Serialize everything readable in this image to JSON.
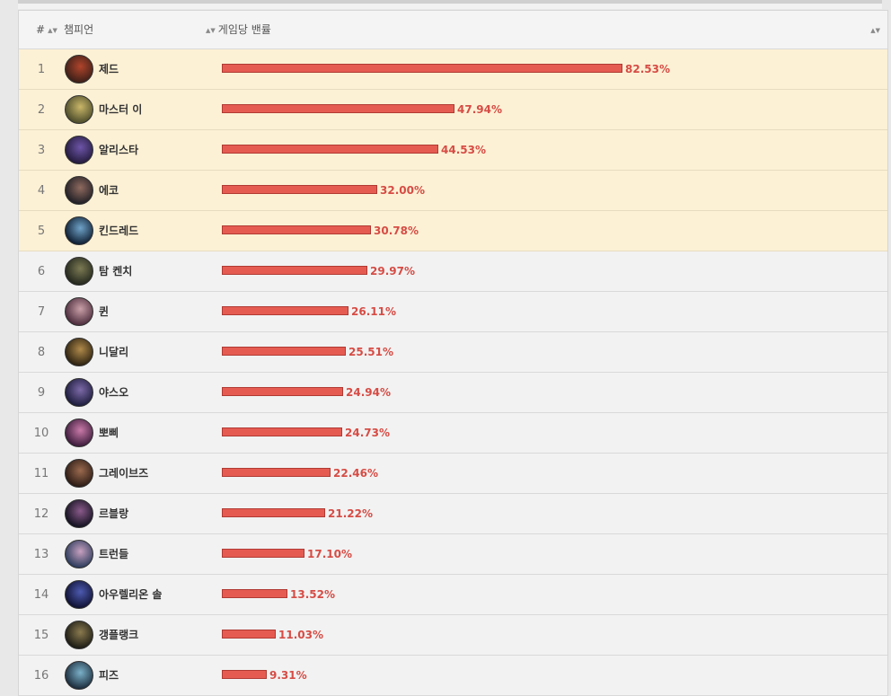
{
  "table": {
    "headers": {
      "rank": "#",
      "champion": "챔피언",
      "stat": "게임당 밴률"
    },
    "rows": [
      {
        "rank": "1",
        "name": "제드",
        "value": "82.53%",
        "pct": 82.53,
        "colors": [
          "#3a1f18",
          "#b0442b"
        ]
      },
      {
        "rank": "2",
        "name": "마스터 이",
        "value": "47.94%",
        "pct": 47.94,
        "colors": [
          "#4a4a2a",
          "#c9b668"
        ]
      },
      {
        "rank": "3",
        "name": "알리스타",
        "value": "44.53%",
        "pct": 44.53,
        "colors": [
          "#231a3b",
          "#6d55a8"
        ]
      },
      {
        "rank": "4",
        "name": "에코",
        "value": "32.00%",
        "pct": 32.0,
        "colors": [
          "#1e1e24",
          "#8f6a5f"
        ]
      },
      {
        "rank": "5",
        "name": "킨드레드",
        "value": "30.78%",
        "pct": 30.78,
        "colors": [
          "#0d1c30",
          "#6fa3c8"
        ]
      },
      {
        "rank": "6",
        "name": "탐 켄치",
        "value": "29.97%",
        "pct": 29.97,
        "colors": [
          "#22261c",
          "#7c7a54"
        ]
      },
      {
        "rank": "7",
        "name": "퀸",
        "value": "26.11%",
        "pct": 26.11,
        "colors": [
          "#4a2a3a",
          "#c9a0a8"
        ]
      },
      {
        "rank": "8",
        "name": "니달리",
        "value": "25.51%",
        "pct": 25.51,
        "colors": [
          "#2a2010",
          "#b08a4a"
        ]
      },
      {
        "rank": "9",
        "name": "야스오",
        "value": "24.94%",
        "pct": 24.94,
        "colors": [
          "#1a1a3a",
          "#7d6aa8"
        ]
      },
      {
        "rank": "10",
        "name": "뽀삐",
        "value": "24.73%",
        "pct": 24.73,
        "colors": [
          "#3a1a3a",
          "#c97aa8"
        ]
      },
      {
        "rank": "11",
        "name": "그레이브즈",
        "value": "22.46%",
        "pct": 22.46,
        "colors": [
          "#2a1a14",
          "#9a6a4e"
        ]
      },
      {
        "rank": "12",
        "name": "르블랑",
        "value": "21.22%",
        "pct": 21.22,
        "colors": [
          "#10101e",
          "#8a5a8a"
        ]
      },
      {
        "rank": "13",
        "name": "트런들",
        "value": "17.10%",
        "pct": 17.1,
        "colors": [
          "#2a3a5a",
          "#c7a0c0"
        ]
      },
      {
        "rank": "14",
        "name": "아우렐리온 솔",
        "value": "13.52%",
        "pct": 13.52,
        "colors": [
          "#0e1030",
          "#4d5ab0"
        ]
      },
      {
        "rank": "15",
        "name": "갱플랭크",
        "value": "11.03%",
        "pct": 11.03,
        "colors": [
          "#1a1a14",
          "#8a7a4e"
        ]
      },
      {
        "rank": "16",
        "name": "피즈",
        "value": "9.31%",
        "pct": 9.31,
        "colors": [
          "#1a2a3a",
          "#7ab0c8"
        ]
      }
    ]
  }
}
